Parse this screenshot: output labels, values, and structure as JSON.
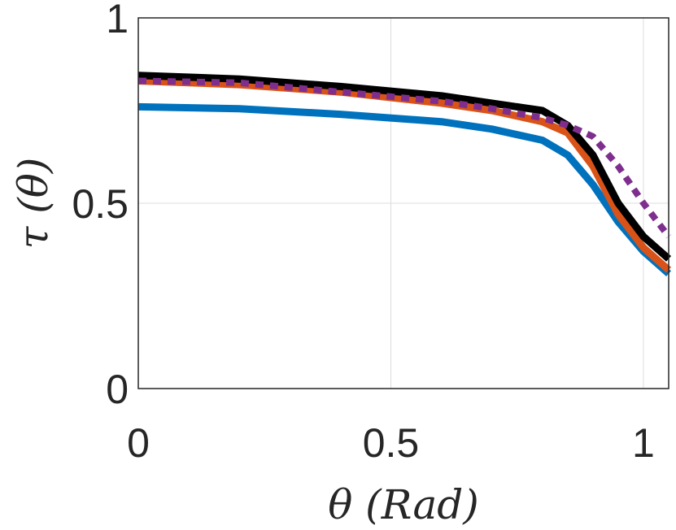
{
  "chart_data": {
    "type": "line",
    "title": "",
    "xlabel": "θ (Rad)",
    "ylabel": "τ (θ)",
    "xlim": [
      0,
      1.05
    ],
    "ylim": [
      0,
      1
    ],
    "xticks": [
      0,
      0.5,
      1
    ],
    "yticks": [
      0,
      0.5,
      1
    ],
    "xtick_labels": [
      "0",
      "0.5",
      "1"
    ],
    "ytick_labels": [
      "0",
      "0.5",
      "1"
    ],
    "grid": true,
    "series": [
      {
        "color": "#0072BD",
        "style": "solid",
        "x": [
          0,
          0.2,
          0.4,
          0.6,
          0.7,
          0.8,
          0.85,
          0.9,
          0.95,
          1.0,
          1.05
        ],
        "y": [
          0.76,
          0.755,
          0.74,
          0.72,
          0.7,
          0.67,
          0.63,
          0.55,
          0.45,
          0.37,
          0.31
        ]
      },
      {
        "color": "#D95319",
        "style": "solid",
        "x": [
          0,
          0.2,
          0.4,
          0.6,
          0.7,
          0.8,
          0.85,
          0.9,
          0.95,
          1.0,
          1.05
        ],
        "y": [
          0.83,
          0.82,
          0.8,
          0.77,
          0.75,
          0.72,
          0.69,
          0.6,
          0.47,
          0.38,
          0.32
        ]
      },
      {
        "color": "#000000",
        "style": "solid",
        "x": [
          0,
          0.2,
          0.4,
          0.6,
          0.7,
          0.8,
          0.85,
          0.9,
          0.95,
          1.0,
          1.05
        ],
        "y": [
          0.845,
          0.835,
          0.815,
          0.79,
          0.77,
          0.75,
          0.71,
          0.63,
          0.5,
          0.41,
          0.35
        ]
      },
      {
        "color": "#7E2F8E",
        "style": "dotted",
        "x": [
          0,
          0.2,
          0.4,
          0.6,
          0.7,
          0.8,
          0.85,
          0.9,
          0.95,
          1.0,
          1.05
        ],
        "y": [
          0.83,
          0.825,
          0.8,
          0.775,
          0.755,
          0.73,
          0.71,
          0.68,
          0.6,
          0.5,
          0.41
        ]
      }
    ]
  }
}
